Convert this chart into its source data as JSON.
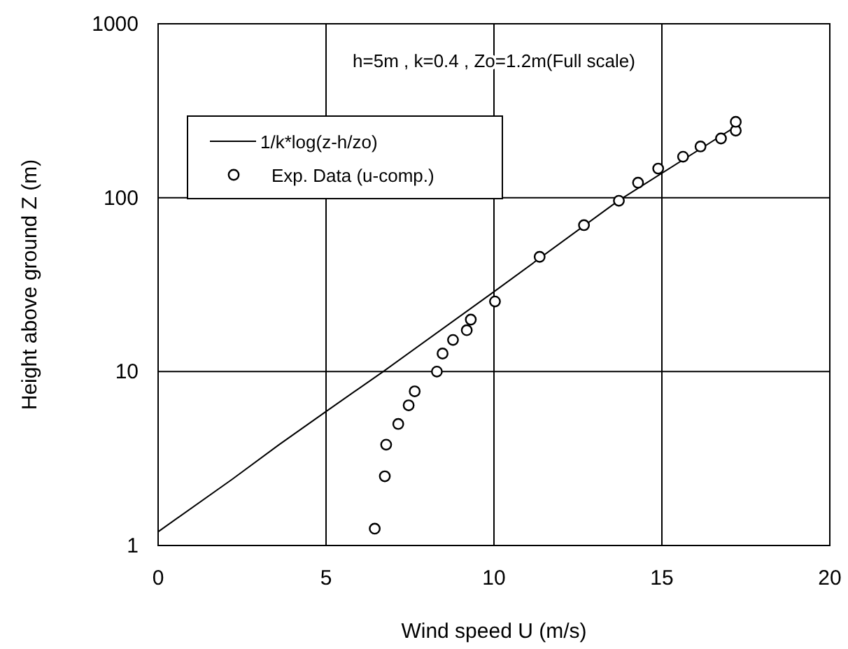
{
  "chart_data": {
    "type": "scatter",
    "xlabel": "Wind speed U (m/s)",
    "ylabel": "Height above ground Z (m)",
    "log": "y",
    "xlim": [
      0,
      20
    ],
    "xticks": [
      0,
      5,
      10,
      15,
      20
    ],
    "ylim": [
      1,
      1000
    ],
    "yticks": [
      1,
      10,
      100,
      1000
    ],
    "grid": true,
    "legend": "top left",
    "annotations": [
      "h=5m , k=0.4 , Zo=1.2m(Full scale)"
    ],
    "series": [
      {
        "name": "1/k*log(z-h/zo)",
        "type": "line",
        "color": "#000000",
        "marker": "none",
        "line_style": "solid",
        "x": [
          0,
          2.2,
          3.6,
          5,
          6.7,
          10,
          13.7,
          17.3
        ],
        "values": [
          1.2,
          2.4,
          3.8,
          5.9,
          10,
          28.8,
          96,
          264
        ]
      },
      {
        "name": "Exp. Data (u-comp.)",
        "color": "#000000",
        "marker": "circle",
        "x": [
          6.45,
          6.75,
          6.79,
          7.15,
          7.46,
          7.64,
          8.3,
          8.47,
          8.78,
          9.19,
          9.31,
          10.03,
          11.36,
          12.68,
          13.72,
          14.29,
          14.89,
          15.63,
          16.15,
          16.76,
          17.2,
          17.2
        ],
        "values": [
          1.25,
          2.5,
          3.8,
          5,
          6.4,
          7.7,
          10,
          12.7,
          15.2,
          17.3,
          19.9,
          25.3,
          45.7,
          69.5,
          96,
          122,
          147,
          172,
          197,
          219,
          243,
          273
        ]
      }
    ]
  }
}
